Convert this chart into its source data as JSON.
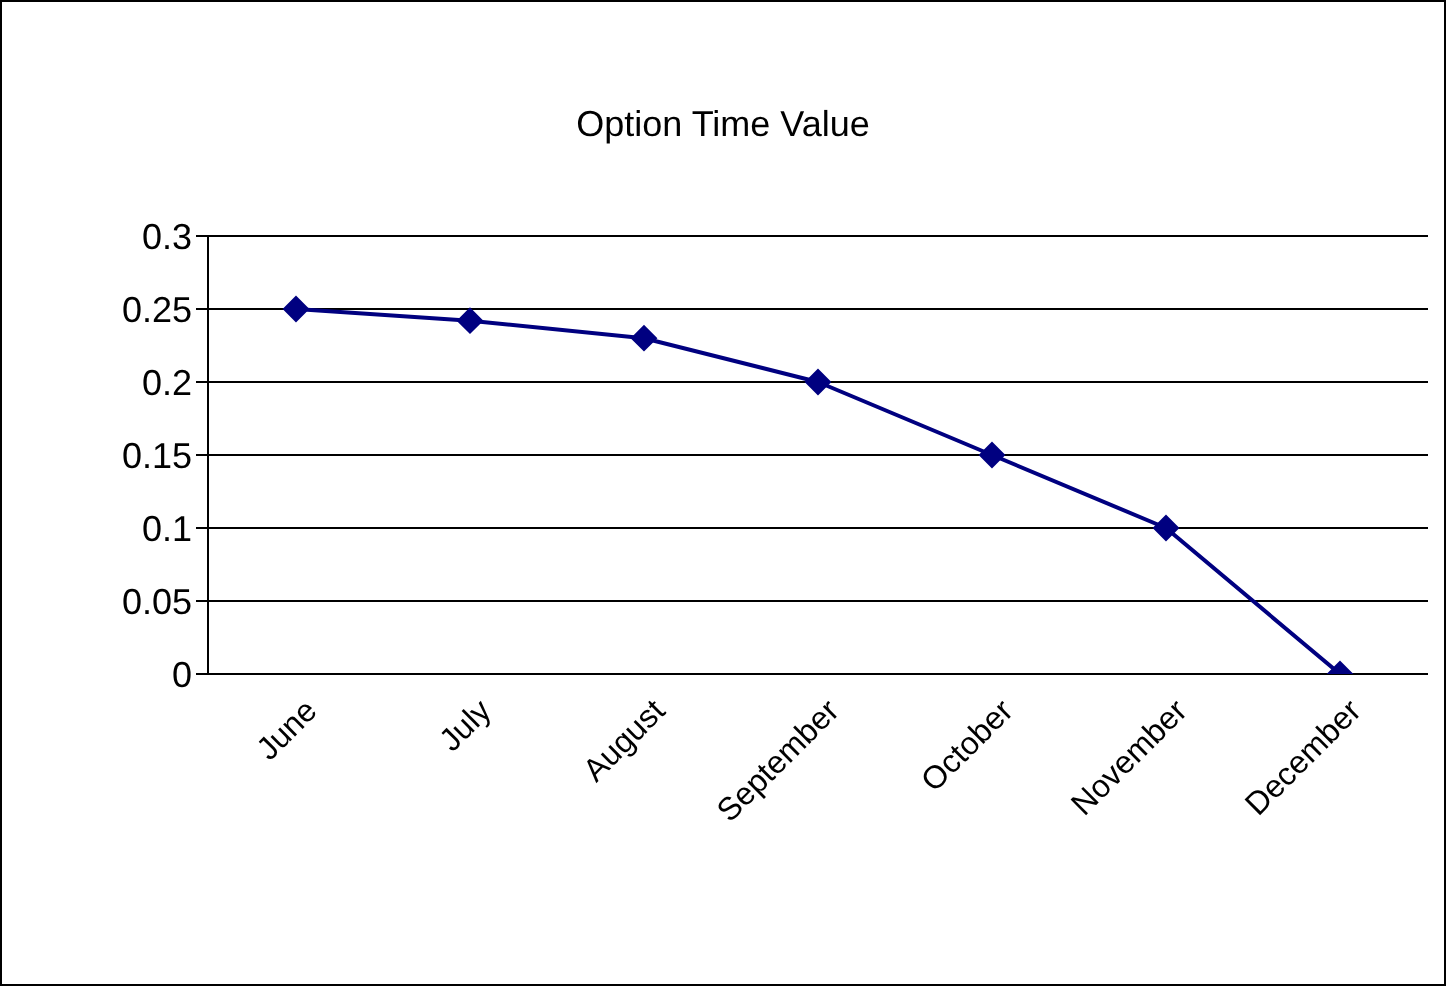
{
  "chart_data": {
    "type": "line",
    "title": "Option Time Value",
    "categories": [
      "June",
      "July",
      "August",
      "September",
      "October",
      "November",
      "December"
    ],
    "series": [
      {
        "color": "#000080",
        "values": [
          0.25,
          0.242,
          0.23,
          0.2,
          0.15,
          0.1,
          0
        ]
      }
    ],
    "ylim": [
      0,
      0.3
    ],
    "yticks": [
      0,
      0.05,
      0.1,
      0.15,
      0.2,
      0.25,
      0.3
    ],
    "grid": "y",
    "marker": "diamond",
    "line_style": "solid"
  }
}
